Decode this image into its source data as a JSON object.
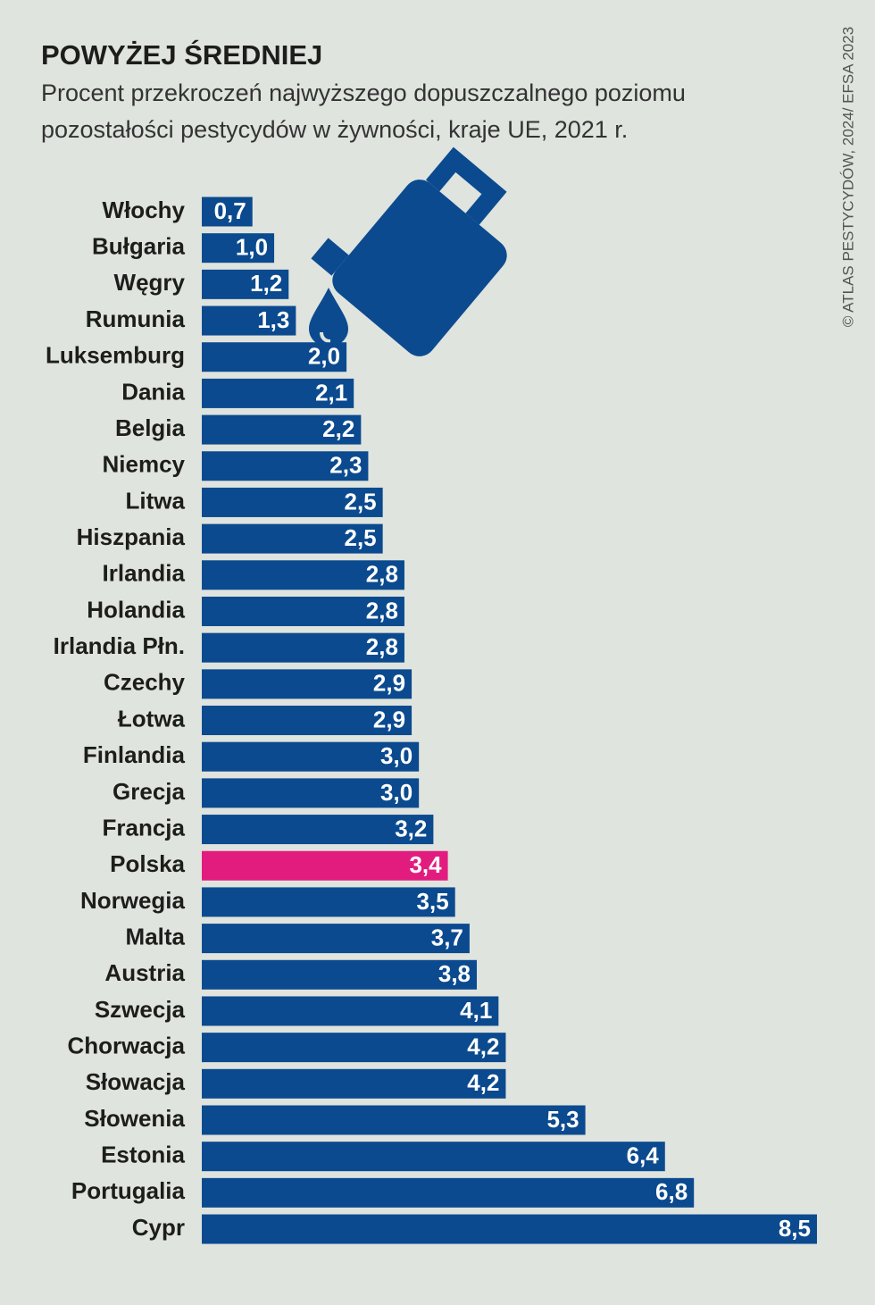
{
  "chart_data": {
    "type": "hbar",
    "title": "POWYŻEJ ŚREDNIEJ",
    "subtitle": [
      "Procent przekroczeń najwyższego dopuszczalnego poziomu",
      "pozostałości pestycydów w żywności, kraje UE, 2021 r."
    ],
    "source": "© ATLAS PESTYCYDÓW, 2024/ EFSA 2023",
    "categories": [
      "Włochy",
      "Bułgaria",
      "Węgry",
      "Rumunia",
      "Luksemburg",
      "Dania",
      "Belgia",
      "Niemcy",
      "Litwa",
      "Hiszpania",
      "Irlandia",
      "Holandia",
      "Irlandia Płn.",
      "Czechy",
      "Łotwa",
      "Finlandia",
      "Grecja",
      "Francja",
      "Polska",
      "Norwegia",
      "Malta",
      "Austria",
      "Szwecja",
      "Chorwacja",
      "Słowacja",
      "Słowenia",
      "Estonia",
      "Portugalia",
      "Cypr"
    ],
    "values": [
      0.7,
      1.0,
      1.2,
      1.3,
      2.0,
      2.1,
      2.2,
      2.3,
      2.5,
      2.5,
      2.8,
      2.8,
      2.8,
      2.9,
      2.9,
      3.0,
      3.0,
      3.2,
      3.4,
      3.5,
      3.7,
      3.8,
      4.1,
      4.2,
      4.2,
      5.3,
      6.4,
      6.8,
      8.5
    ],
    "value_labels": [
      "0,7",
      "1,0",
      "1,2",
      "1,3",
      "2,0",
      "2,1",
      "2,2",
      "2,3",
      "2,5",
      "2,5",
      "2,8",
      "2,8",
      "2,8",
      "2,9",
      "2,9",
      "3,0",
      "3,0",
      "3,2",
      "3,4",
      "3,5",
      "3,7",
      "3,8",
      "4,1",
      "4,2",
      "4,2",
      "5,3",
      "6,4",
      "6,8",
      "8,5"
    ],
    "colors": [
      "#0b4a8f",
      "#0b4a8f",
      "#0b4a8f",
      "#0b4a8f",
      "#0b4a8f",
      "#0b4a8f",
      "#0b4a8f",
      "#0b4a8f",
      "#0b4a8f",
      "#0b4a8f",
      "#0b4a8f",
      "#0b4a8f",
      "#0b4a8f",
      "#0b4a8f",
      "#0b4a8f",
      "#0b4a8f",
      "#0b4a8f",
      "#0b4a8f",
      "#e21c7f",
      "#0b4a8f",
      "#0b4a8f",
      "#0b4a8f",
      "#0b4a8f",
      "#0b4a8f",
      "#0b4a8f",
      "#0b4a8f",
      "#0b4a8f",
      "#0b4a8f",
      "#0b4a8f"
    ]
  }
}
